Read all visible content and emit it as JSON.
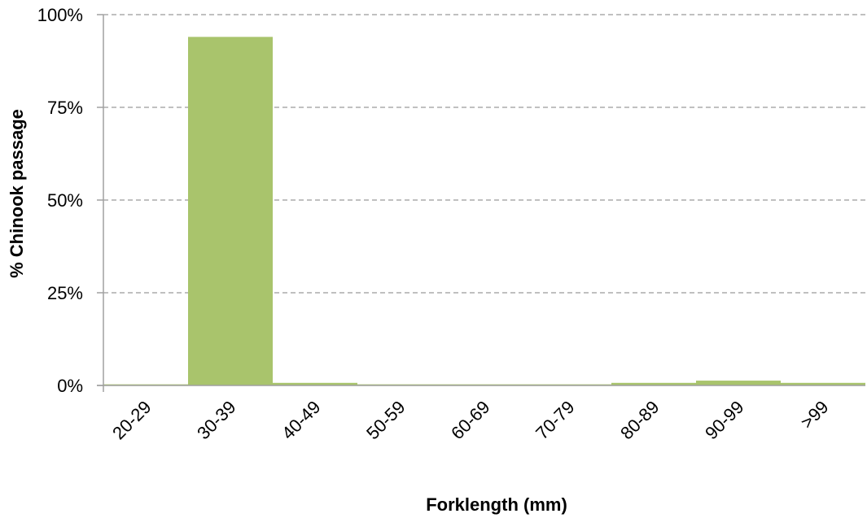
{
  "chart_data": {
    "type": "bar",
    "categories": [
      "20-29",
      "30-39",
      "40-49",
      "50-59",
      "60-69",
      "70-79",
      "80-89",
      "90-99",
      ">99"
    ],
    "values": [
      0.3,
      94.0,
      0.7,
      0.3,
      0.3,
      0.3,
      0.7,
      1.3,
      0.7
    ],
    "ylim": [
      0,
      100
    ],
    "yticks": [
      0,
      25,
      50,
      75,
      100
    ],
    "ytick_labels": [
      "0%",
      "25%",
      "50%",
      "75%",
      "100%"
    ],
    "xlabel": "Forklength (mm)",
    "ylabel": "% Chinook passage",
    "grid": "horizontal dashed",
    "legend": "none",
    "bar_color": "#a9c46c",
    "axis_color": "#a0a0a0",
    "grid_color": "#9a9a9a"
  }
}
